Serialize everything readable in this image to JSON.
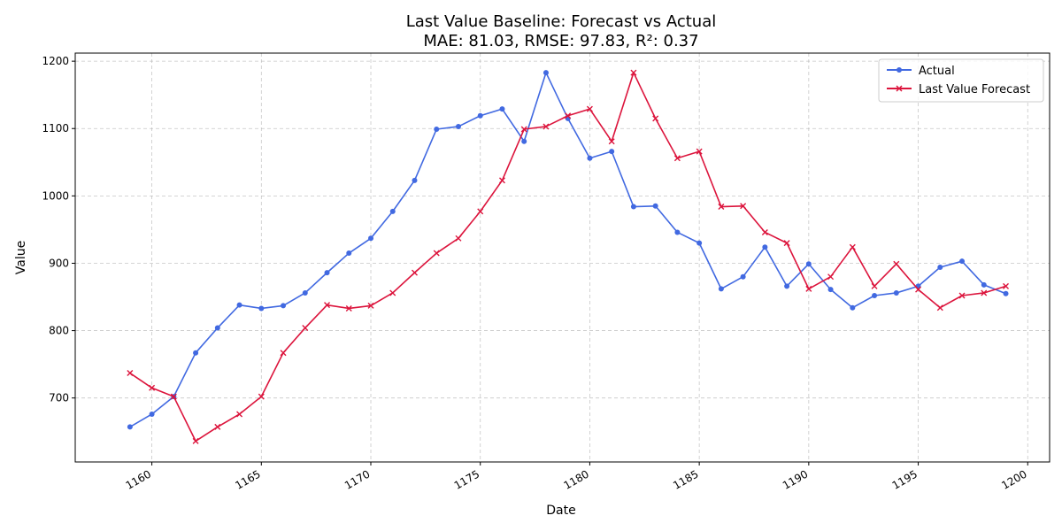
{
  "chart_data": {
    "type": "line",
    "title": "Last Value Baseline: Forecast vs Actual",
    "subtitle": "MAE: 81.03, RMSE: 97.83, R²: 0.37",
    "xlabel": "Date",
    "ylabel": "Value",
    "xlim": [
      1156.5,
      1201
    ],
    "ylim": [
      605,
      1212
    ],
    "xticks": [
      1160,
      1165,
      1170,
      1175,
      1180,
      1185,
      1190,
      1195,
      1200
    ],
    "yticks": [
      700,
      800,
      900,
      1000,
      1100,
      1200
    ],
    "grid": true,
    "legend_position": "top-right",
    "x": [
      1159,
      1160,
      1161,
      1162,
      1163,
      1164,
      1165,
      1166,
      1167,
      1168,
      1169,
      1170,
      1171,
      1172,
      1173,
      1174,
      1175,
      1176,
      1177,
      1178,
      1179,
      1180,
      1181,
      1182,
      1183,
      1184,
      1185,
      1186,
      1187,
      1188,
      1189,
      1190,
      1191,
      1192,
      1193,
      1194,
      1195,
      1196,
      1197,
      1198,
      1199
    ],
    "series": [
      {
        "name": "Actual",
        "color": "#4169e1",
        "marker": "circle",
        "values": [
          657,
          676,
          702,
          767,
          804,
          838,
          833,
          837,
          856,
          886,
          915,
          937,
          977,
          1023,
          1099,
          1103,
          1119,
          1129,
          1081,
          1183,
          1115,
          1056,
          1066,
          984,
          985,
          946,
          930,
          862,
          880,
          924,
          866,
          899,
          861,
          834,
          852,
          856,
          866,
          894,
          903,
          868,
          855
        ]
      },
      {
        "name": "Last Value Forecast",
        "color": "#dc143c",
        "marker": "x",
        "values": [
          737,
          715,
          702,
          636,
          657,
          676,
          702,
          767,
          804,
          838,
          833,
          837,
          856,
          886,
          915,
          937,
          977,
          1023,
          1099,
          1103,
          1119,
          1129,
          1081,
          1183,
          1115,
          1056,
          1066,
          984,
          985,
          946,
          930,
          862,
          880,
          924,
          866,
          899,
          861,
          834,
          852,
          856,
          866
        ]
      }
    ]
  }
}
